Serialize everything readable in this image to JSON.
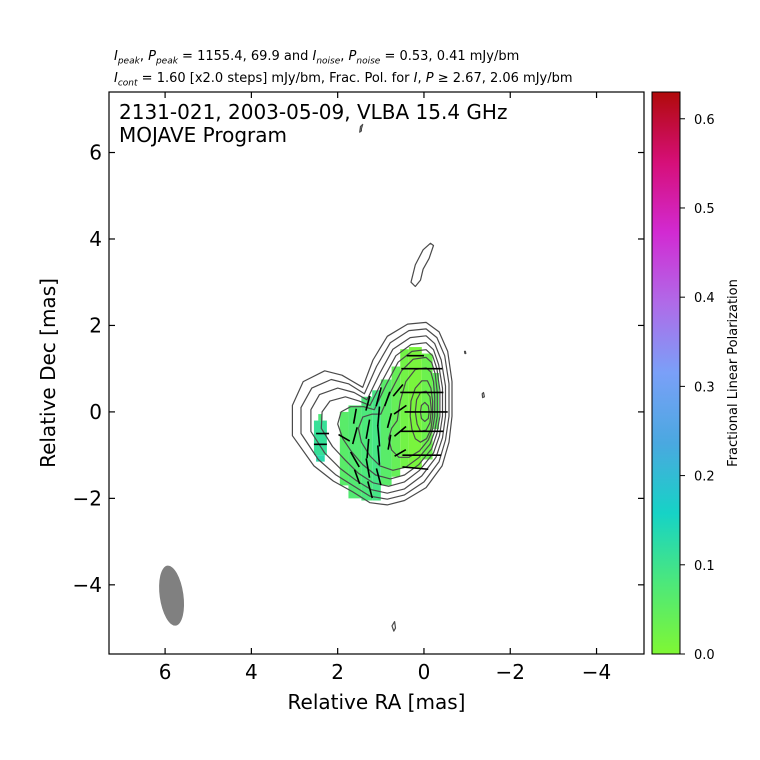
{
  "header": {
    "line1": {
      "s1": "peak",
      "s2": ", ",
      "s3": "P",
      "s4": "peak",
      "s5": " = 1155.4, 69.9 and ",
      "s6": "noise",
      "s7": ", ",
      "s8": "P",
      "s9": "noise",
      "s10": " = 0.53, 0.41 mJy/bm"
    },
    "line2": {
      "s1": "cont",
      "s2": " = 1.60 [x2.0 steps] mJy/bm, Frac. Pol. for ",
      "s3": "I",
      "s4": ", ",
      "s5": "P",
      "s6": " ≥ 2.67, 2.06 mJy/bm"
    },
    "I": "I"
  },
  "plot": {
    "title_line1": "2131-021, 2003-05-09, VLBA 15.4 GHz",
    "title_line2": "MOJAVE Program"
  },
  "colors": {
    "contour": "#4a4a4a",
    "vector": "#000000",
    "beam": "#808080",
    "colorbar_stops": [
      "#7ff734",
      "#4de87a",
      "#16d3c6",
      "#4aa8e0",
      "#7aa0f8",
      "#b06ae8",
      "#d22ad2",
      "#d60f78",
      "#b00a0a"
    ]
  },
  "chart_data": {
    "type": "heatmap",
    "xlabel": "Relative RA [mas]",
    "ylabel": "Relative Dec [mas]",
    "xlim": [
      7.3,
      -5.1
    ],
    "ylim": [
      -5.6,
      7.4
    ],
    "x_ticks": [
      {
        "v": 6,
        "label": "6"
      },
      {
        "v": 4,
        "label": "4"
      },
      {
        "v": 2,
        "label": "2"
      },
      {
        "v": 0,
        "label": "0"
      },
      {
        "v": -2,
        "label": "−2"
      },
      {
        "v": -4,
        "label": "−4"
      }
    ],
    "y_ticks": [
      {
        "v": 6,
        "label": "6"
      },
      {
        "v": 4,
        "label": "4"
      },
      {
        "v": 2,
        "label": "2"
      },
      {
        "v": 0,
        "label": "0"
      },
      {
        "v": -2,
        "label": "−2"
      },
      {
        "v": -4,
        "label": "−4"
      }
    ],
    "colorbar": {
      "label": "Fractional Linear Polarization",
      "range": [
        0.0,
        0.63
      ],
      "ticks": [
        {
          "v": 0.0,
          "label": "0.0"
        },
        {
          "v": 0.1,
          "label": "0.1"
        },
        {
          "v": 0.2,
          "label": "0.2"
        },
        {
          "v": 0.3,
          "label": "0.3"
        },
        {
          "v": 0.4,
          "label": "0.4"
        },
        {
          "v": 0.5,
          "label": "0.5"
        },
        {
          "v": 0.6,
          "label": "0.6"
        }
      ]
    },
    "contour_levels_mjy": [
      1.6,
      3.2,
      6.4,
      12.8,
      25.6,
      51.2,
      102.4,
      204.8,
      409.6,
      819.2
    ],
    "contours": [
      [
        [
          1.42,
          0.57
        ],
        [
          1.18,
          1.2
        ],
        [
          0.85,
          1.75
        ],
        [
          0.38,
          2.03
        ],
        [
          -0.05,
          2.07
        ],
        [
          -0.35,
          1.85
        ],
        [
          -0.55,
          1.4
        ],
        [
          -0.65,
          0.7
        ],
        [
          -0.65,
          -0.1
        ],
        [
          -0.58,
          -0.7
        ],
        [
          -0.42,
          -1.25
        ],
        [
          -0.05,
          -1.75
        ],
        [
          0.45,
          -2.05
        ],
        [
          0.85,
          -2.15
        ],
        [
          1.25,
          -2.1
        ],
        [
          1.65,
          -1.85
        ],
        [
          2.1,
          -1.6
        ],
        [
          2.55,
          -1.25
        ],
        [
          3.05,
          -0.55
        ],
        [
          3.05,
          0.15
        ],
        [
          2.8,
          0.7
        ],
        [
          2.3,
          0.95
        ],
        [
          1.9,
          0.85
        ]
      ],
      [
        [
          1.38,
          0.42
        ],
        [
          1.1,
          1.05
        ],
        [
          0.78,
          1.6
        ],
        [
          0.35,
          1.88
        ],
        [
          -0.05,
          1.92
        ],
        [
          -0.3,
          1.72
        ],
        [
          -0.48,
          1.3
        ],
        [
          -0.58,
          0.65
        ],
        [
          -0.58,
          -0.1
        ],
        [
          -0.5,
          -0.65
        ],
        [
          -0.35,
          -1.15
        ],
        [
          0.0,
          -1.62
        ],
        [
          0.45,
          -1.92
        ],
        [
          0.85,
          -2.02
        ],
        [
          1.25,
          -1.95
        ],
        [
          1.62,
          -1.72
        ],
        [
          2.05,
          -1.45
        ],
        [
          2.45,
          -1.1
        ],
        [
          2.85,
          -0.5
        ],
        [
          2.85,
          0.1
        ],
        [
          2.6,
          0.55
        ],
        [
          2.15,
          0.75
        ],
        [
          1.75,
          0.65
        ]
      ],
      [
        [
          1.32,
          0.28
        ],
        [
          1.02,
          0.9
        ],
        [
          0.72,
          1.45
        ],
        [
          0.32,
          1.72
        ],
        [
          -0.05,
          1.76
        ],
        [
          -0.25,
          1.58
        ],
        [
          -0.4,
          1.2
        ],
        [
          -0.5,
          0.6
        ],
        [
          -0.5,
          -0.1
        ],
        [
          -0.43,
          -0.6
        ],
        [
          -0.28,
          -1.05
        ],
        [
          0.05,
          -1.48
        ],
        [
          0.45,
          -1.78
        ],
        [
          0.85,
          -1.88
        ],
        [
          1.22,
          -1.8
        ],
        [
          1.58,
          -1.58
        ],
        [
          1.95,
          -1.3
        ],
        [
          2.3,
          -0.95
        ],
        [
          2.62,
          -0.45
        ],
        [
          2.62,
          0.05
        ],
        [
          2.42,
          0.4
        ],
        [
          2.0,
          0.55
        ],
        [
          1.62,
          0.45
        ]
      ],
      [
        [
          1.25,
          0.15
        ],
        [
          0.95,
          0.75
        ],
        [
          0.65,
          1.3
        ],
        [
          0.3,
          1.56
        ],
        [
          -0.05,
          1.6
        ],
        [
          -0.22,
          1.44
        ],
        [
          -0.34,
          1.1
        ],
        [
          -0.43,
          0.55
        ],
        [
          -0.43,
          -0.1
        ],
        [
          -0.36,
          -0.55
        ],
        [
          -0.22,
          -0.95
        ],
        [
          0.1,
          -1.35
        ],
        [
          0.45,
          -1.62
        ],
        [
          0.82,
          -1.72
        ],
        [
          1.18,
          -1.64
        ],
        [
          1.52,
          -1.42
        ],
        [
          1.82,
          -1.12
        ],
        [
          2.12,
          -0.8
        ],
        [
          2.38,
          -0.38
        ],
        [
          2.36,
          0.0
        ],
        [
          2.18,
          0.25
        ],
        [
          1.82,
          0.35
        ],
        [
          1.5,
          0.25
        ]
      ],
      [
        [
          1.15,
          0.05
        ],
        [
          0.88,
          0.62
        ],
        [
          0.6,
          1.15
        ],
        [
          0.28,
          1.4
        ],
        [
          -0.05,
          1.44
        ],
        [
          -0.2,
          1.3
        ],
        [
          -0.3,
          1.0
        ],
        [
          -0.37,
          0.5
        ],
        [
          -0.37,
          -0.1
        ],
        [
          -0.3,
          -0.5
        ],
        [
          -0.18,
          -0.85
        ],
        [
          0.12,
          -1.22
        ],
        [
          0.45,
          -1.46
        ],
        [
          0.78,
          -1.55
        ],
        [
          1.12,
          -1.46
        ],
        [
          1.42,
          -1.22
        ],
        [
          1.68,
          -0.92
        ],
        [
          1.88,
          -0.62
        ],
        [
          2.0,
          -0.28
        ],
        [
          1.92,
          0.0
        ],
        [
          1.7,
          0.12
        ],
        [
          1.4,
          0.12
        ]
      ],
      [
        [
          1.0,
          -0.05
        ],
        [
          0.78,
          0.45
        ],
        [
          0.52,
          0.95
        ],
        [
          0.25,
          1.22
        ],
        [
          -0.05,
          1.26
        ],
        [
          -0.18,
          1.14
        ],
        [
          -0.26,
          0.88
        ],
        [
          -0.31,
          0.45
        ],
        [
          -0.31,
          -0.1
        ],
        [
          -0.25,
          -0.45
        ],
        [
          -0.14,
          -0.75
        ],
        [
          0.12,
          -1.06
        ],
        [
          0.42,
          -1.28
        ],
        [
          0.72,
          -1.35
        ],
        [
          1.02,
          -1.25
        ],
        [
          1.25,
          -1.02
        ],
        [
          1.45,
          -0.7
        ],
        [
          1.52,
          -0.38
        ],
        [
          1.42,
          -0.12
        ],
        [
          1.2,
          -0.05
        ]
      ],
      [
        [
          0.62,
          -0.2
        ],
        [
          0.55,
          0.25
        ],
        [
          0.42,
          0.7
        ],
        [
          0.2,
          0.98
        ],
        [
          -0.05,
          1.02
        ],
        [
          -0.16,
          0.92
        ],
        [
          -0.22,
          0.7
        ],
        [
          -0.25,
          0.35
        ],
        [
          -0.25,
          -0.1
        ],
        [
          -0.2,
          -0.4
        ],
        [
          -0.1,
          -0.65
        ],
        [
          0.1,
          -0.9
        ],
        [
          0.35,
          -1.05
        ],
        [
          0.58,
          -1.05
        ],
        [
          0.75,
          -0.88
        ],
        [
          0.82,
          -0.62
        ],
        [
          0.75,
          -0.38
        ]
      ],
      [
        [
          0.32,
          -0.1
        ],
        [
          0.3,
          0.25
        ],
        [
          0.2,
          0.55
        ],
        [
          0.05,
          0.72
        ],
        [
          -0.08,
          0.72
        ],
        [
          -0.16,
          0.55
        ],
        [
          -0.2,
          0.25
        ],
        [
          -0.2,
          -0.1
        ],
        [
          -0.16,
          -0.4
        ],
        [
          -0.06,
          -0.62
        ],
        [
          0.08,
          -0.7
        ],
        [
          0.2,
          -0.62
        ],
        [
          0.28,
          -0.4
        ]
      ],
      [
        [
          0.2,
          0.0
        ],
        [
          0.17,
          0.28
        ],
        [
          0.08,
          0.45
        ],
        [
          -0.05,
          0.48
        ],
        [
          -0.14,
          0.35
        ],
        [
          -0.17,
          0.05
        ],
        [
          -0.14,
          -0.25
        ],
        [
          -0.05,
          -0.42
        ],
        [
          0.08,
          -0.45
        ],
        [
          0.16,
          -0.28
        ]
      ],
      [
        [
          0.08,
          0.0
        ],
        [
          0.06,
          0.15
        ],
        [
          -0.02,
          0.22
        ],
        [
          -0.1,
          0.14
        ],
        [
          -0.12,
          0.0
        ],
        [
          -0.1,
          -0.15
        ],
        [
          -0.02,
          -0.22
        ],
        [
          0.06,
          -0.15
        ]
      ],
      [
        [
          0.02,
          3.3
        ],
        [
          -0.12,
          3.55
        ],
        [
          -0.22,
          3.85
        ],
        [
          -0.15,
          3.9
        ],
        [
          0.02,
          3.75
        ],
        [
          0.2,
          3.4
        ],
        [
          0.3,
          3.0
        ],
        [
          0.2,
          2.9
        ],
        [
          0.08,
          3.05
        ]
      ],
      [
        [
          1.45,
          6.55
        ],
        [
          1.42,
          6.65
        ],
        [
          1.47,
          6.6
        ],
        [
          1.49,
          6.47
        ],
        [
          1.45,
          6.5
        ]
      ],
      [
        [
          0.68,
          -4.85
        ],
        [
          0.66,
          -5.0
        ],
        [
          0.7,
          -5.07
        ],
        [
          0.74,
          -4.95
        ]
      ],
      [
        [
          -0.96,
          1.4
        ],
        [
          -0.97,
          1.35
        ],
        [
          -0.95,
          1.35
        ],
        [
          -0.94,
          1.4
        ]
      ],
      [
        [
          -1.38,
          0.45
        ],
        [
          -1.4,
          0.35
        ],
        [
          -1.36,
          0.33
        ],
        [
          -1.35,
          0.42
        ]
      ]
    ],
    "pol_fraction_cells": [
      {
        "x0": 2.25,
        "x1": 2.55,
        "y0": -1.0,
        "y1": -0.2,
        "frac": 0.11
      },
      {
        "x0": 2.3,
        "x1": 2.5,
        "y0": -1.15,
        "y1": -1.0,
        "frac": 0.13
      },
      {
        "x0": 2.35,
        "x1": 2.45,
        "y0": -0.2,
        "y1": -0.05,
        "frac": 0.08
      },
      {
        "x0": 1.75,
        "x1": 1.95,
        "y0": -1.7,
        "y1": 0.0,
        "frac": 0.06
      },
      {
        "x0": 1.45,
        "x1": 1.75,
        "y0": -2.0,
        "y1": 0.15,
        "frac": 0.07
      },
      {
        "x0": 1.2,
        "x1": 1.45,
        "y0": -2.05,
        "y1": 0.35,
        "frac": 0.08
      },
      {
        "x0": 1.0,
        "x1": 1.2,
        "y0": -2.05,
        "y1": 0.5,
        "frac": 0.09
      },
      {
        "x0": 0.75,
        "x1": 1.0,
        "y0": -1.7,
        "y1": 0.75,
        "frac": 0.06
      },
      {
        "x0": 0.55,
        "x1": 0.75,
        "y0": -1.5,
        "y1": 1.05,
        "frac": 0.04
      },
      {
        "x0": 0.35,
        "x1": 0.55,
        "y0": -1.3,
        "y1": 1.45,
        "frac": 0.02
      },
      {
        "x0": 0.05,
        "x1": 0.35,
        "y0": -1.3,
        "y1": 1.5,
        "frac": 0.01
      },
      {
        "x0": -0.2,
        "x1": 0.05,
        "y0": -1.1,
        "y1": 1.35,
        "frac": 0.03
      },
      {
        "x0": -0.35,
        "x1": -0.2,
        "y0": -0.4,
        "y1": 0.9,
        "frac": 0.05
      }
    ],
    "evpa_vectors": [
      {
        "x": 2.35,
        "y": -0.5,
        "len": 0.3,
        "pa": 90
      },
      {
        "x": 2.4,
        "y": -0.75,
        "len": 0.3,
        "pa": 90
      },
      {
        "x": 1.85,
        "y": -0.6,
        "len": 0.3,
        "pa": 120
      },
      {
        "x": 1.6,
        "y": -0.1,
        "len": 0.35,
        "pa": 10
      },
      {
        "x": 1.6,
        "y": -0.55,
        "len": 0.4,
        "pa": 15
      },
      {
        "x": 1.6,
        "y": -1.1,
        "len": 0.4,
        "pa": 150
      },
      {
        "x": 1.55,
        "y": -1.5,
        "len": 0.35,
        "pa": 160
      },
      {
        "x": 1.3,
        "y": 0.2,
        "len": 0.35,
        "pa": 15
      },
      {
        "x": 1.3,
        "y": -0.4,
        "len": 0.45,
        "pa": 10
      },
      {
        "x": 1.3,
        "y": -0.85,
        "len": 0.45,
        "pa": 5
      },
      {
        "x": 1.3,
        "y": -1.3,
        "len": 0.45,
        "pa": 170
      },
      {
        "x": 1.25,
        "y": -1.8,
        "len": 0.4,
        "pa": 165
      },
      {
        "x": 1.05,
        "y": 0.35,
        "len": 0.45,
        "pa": 15
      },
      {
        "x": 1.05,
        "y": -0.1,
        "len": 0.45,
        "pa": 5
      },
      {
        "x": 1.05,
        "y": -0.55,
        "len": 0.5,
        "pa": 175
      },
      {
        "x": 1.05,
        "y": -1.0,
        "len": 0.45,
        "pa": 175
      },
      {
        "x": 1.05,
        "y": -1.5,
        "len": 0.4,
        "pa": 165
      },
      {
        "x": 0.85,
        "y": 0.3,
        "len": 0.35,
        "pa": 20
      },
      {
        "x": 0.8,
        "y": -0.2,
        "len": 0.35,
        "pa": 15
      },
      {
        "x": 0.8,
        "y": -0.7,
        "len": 0.35,
        "pa": 10
      },
      {
        "x": 0.6,
        "y": 0.5,
        "len": 0.35,
        "pa": 40
      },
      {
        "x": 0.55,
        "y": 0.05,
        "len": 0.35,
        "pa": 55
      },
      {
        "x": 0.55,
        "y": -0.45,
        "len": 0.35,
        "pa": 50
      },
      {
        "x": 0.55,
        "y": -0.95,
        "len": 0.3,
        "pa": 60
      },
      {
        "x": 0.2,
        "y": 1.3,
        "len": 0.4,
        "pa": 90
      },
      {
        "x": 0.05,
        "y": 1.0,
        "len": 0.95,
        "pa": 90
      },
      {
        "x": 0.05,
        "y": 0.45,
        "len": 1.0,
        "pa": 90
      },
      {
        "x": -0.05,
        "y": 0.0,
        "len": 1.0,
        "pa": 90
      },
      {
        "x": 0.05,
        "y": -0.45,
        "len": 1.0,
        "pa": 90
      },
      {
        "x": 0.05,
        "y": -1.0,
        "len": 0.9,
        "pa": 90
      },
      {
        "x": 0.2,
        "y": -1.3,
        "len": 0.6,
        "pa": 95
      }
    ],
    "beam": {
      "x": 5.85,
      "y": -4.25,
      "major_mas": 1.4,
      "minor_mas": 0.55,
      "pa_deg": -8
    }
  }
}
